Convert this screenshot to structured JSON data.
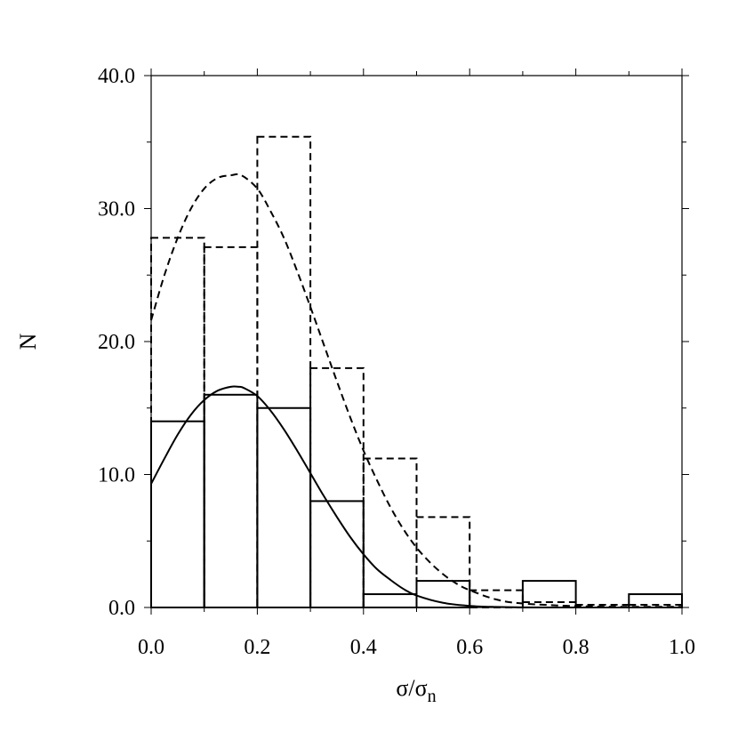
{
  "chart_data": {
    "type": "bar",
    "title": "",
    "xlabel_main": "σ/σ",
    "xlabel_sub": "n",
    "ylabel": "N",
    "xlim": [
      0.0,
      1.0
    ],
    "ylim": [
      0.0,
      40.0
    ],
    "x_ticks": [
      "0.0",
      "0.2",
      "0.4",
      "0.6",
      "0.8",
      "1.0"
    ],
    "y_ticks": [
      "0.0",
      "10.0",
      "20.0",
      "30.0",
      "40.0"
    ],
    "x_tick_values": [
      0.0,
      0.2,
      0.4,
      0.6,
      0.8,
      1.0
    ],
    "y_tick_values": [
      0.0,
      10.0,
      20.0,
      30.0,
      40.0
    ],
    "x_minor_step": 0.1,
    "y_minor_step": 5.0,
    "grid": false,
    "bin_edges": [
      0.0,
      0.1,
      0.2,
      0.3,
      0.4,
      0.5,
      0.6,
      0.7,
      0.8,
      0.9,
      1.0
    ],
    "series": [
      {
        "style": "solid",
        "values": [
          14,
          16,
          15,
          8,
          1,
          2,
          0,
          2,
          0,
          1
        ]
      },
      {
        "style": "dashed",
        "values": [
          27.8,
          27.1,
          35.4,
          18.0,
          11.2,
          6.8,
          1.3,
          0.4,
          0.2,
          0.2
        ]
      }
    ],
    "fit_curves": [
      {
        "style": "solid",
        "x": [
          0.0,
          0.025,
          0.05,
          0.075,
          0.1,
          0.125,
          0.15,
          0.165,
          0.175,
          0.2,
          0.225,
          0.25,
          0.275,
          0.3,
          0.325,
          0.35,
          0.375,
          0.4,
          0.425,
          0.45,
          0.475,
          0.5,
          0.55,
          0.6,
          0.65,
          0.7,
          0.8,
          0.9,
          1.0
        ],
        "y": [
          9.3,
          11.2,
          13.0,
          14.5,
          15.6,
          16.3,
          16.6,
          16.6,
          16.5,
          15.9,
          14.8,
          13.4,
          11.8,
          10.1,
          8.4,
          6.8,
          5.3,
          4.0,
          2.9,
          2.1,
          1.4,
          0.9,
          0.35,
          0.12,
          0.04,
          0.01,
          0.0,
          0.0,
          0.0
        ]
      },
      {
        "style": "dashed",
        "x": [
          0.0,
          0.025,
          0.05,
          0.075,
          0.1,
          0.125,
          0.15,
          0.17,
          0.2,
          0.225,
          0.25,
          0.275,
          0.3,
          0.325,
          0.35,
          0.375,
          0.4,
          0.425,
          0.45,
          0.475,
          0.5,
          0.525,
          0.55,
          0.575,
          0.6,
          0.65,
          0.7,
          0.8,
          0.9,
          1.0
        ],
        "y": [
          21.6,
          25.0,
          27.8,
          30.0,
          31.5,
          32.3,
          32.5,
          32.5,
          31.5,
          29.8,
          27.8,
          25.3,
          22.6,
          19.8,
          17.0,
          14.3,
          11.8,
          9.6,
          7.6,
          5.9,
          4.5,
          3.4,
          2.5,
          1.8,
          1.3,
          0.6,
          0.3,
          0.1,
          0.05,
          0.05
        ]
      }
    ]
  }
}
